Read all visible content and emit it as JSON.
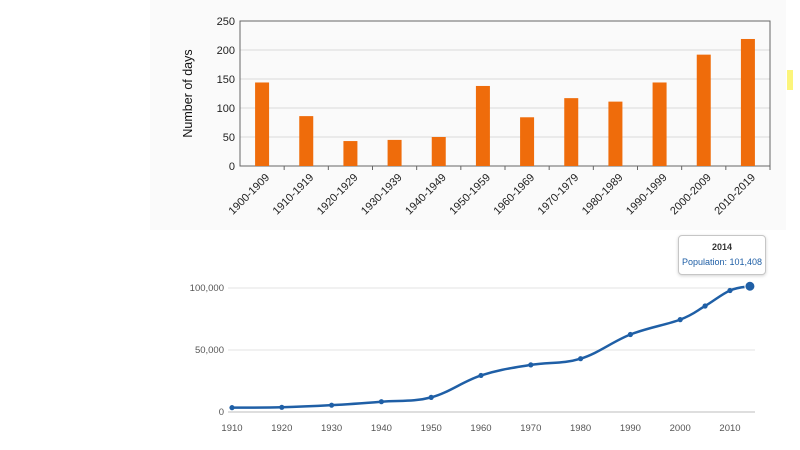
{
  "chart_data": [
    {
      "type": "bar",
      "title": "",
      "xlabel": "",
      "ylabel": "Number of days",
      "categories": [
        "1900-1909",
        "1910-1919",
        "1920-1929",
        "1930-1939",
        "1940-1949",
        "1950-1959",
        "1960-1969",
        "1970-1979",
        "1980-1989",
        "1990-1999",
        "2000-2009",
        "2010-2019"
      ],
      "values": [
        144,
        86,
        43,
        45,
        50,
        138,
        84,
        117,
        111,
        144,
        192,
        219
      ],
      "ylim": [
        0,
        250
      ],
      "yticks": [
        0,
        50,
        100,
        150,
        200,
        250
      ],
      "grid": true,
      "color": "#ef6c0b"
    },
    {
      "type": "line",
      "title": "",
      "xlabel": "",
      "ylabel": "",
      "x": [
        1910,
        1920,
        1930,
        1940,
        1950,
        1960,
        1970,
        1980,
        1990,
        2000,
        2005,
        2010,
        2014
      ],
      "y": [
        3500,
        3800,
        5500,
        8300,
        11800,
        29500,
        38000,
        43000,
        62500,
        74500,
        85500,
        98000,
        101408
      ],
      "xticks": [
        1910,
        1920,
        1930,
        1940,
        1950,
        1960,
        1970,
        1980,
        1990,
        2000,
        2010
      ],
      "yticks": [
        0,
        50000,
        100000
      ],
      "ytick_labels": [
        "0",
        "50,000",
        "100,000"
      ],
      "ylim": [
        0,
        110000
      ],
      "grid": true,
      "color": "#1f5fa6",
      "tooltip": {
        "title": "2014",
        "text": "Population: 101,408"
      }
    }
  ]
}
